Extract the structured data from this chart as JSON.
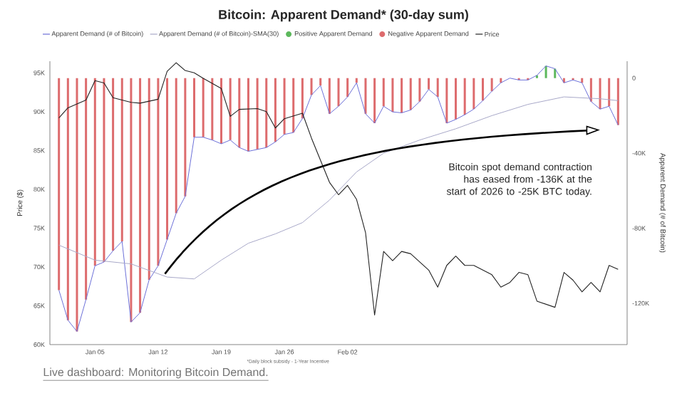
{
  "chart_data": {
    "type": "bar",
    "title": "Bitcoin: Apparent Demand* (30-day sum)",
    "ylabel": "Price ($)",
    "y2label": "Apparent Demand (# of Bitcoin)",
    "legend": "top",
    "x": [
      "2026-01-01",
      "2026-01-02",
      "2026-01-03",
      "2026-01-04",
      "2026-01-05",
      "2026-01-06",
      "2026-01-07",
      "2026-01-08",
      "2026-01-09",
      "2026-01-10",
      "2026-01-11",
      "2026-01-12",
      "2026-01-13",
      "2026-01-14",
      "2026-01-15",
      "2026-01-16",
      "2026-01-17",
      "2026-01-18",
      "2026-01-19",
      "2026-01-20",
      "2026-01-21",
      "2026-01-22",
      "2026-01-23",
      "2026-01-24",
      "2026-01-25",
      "2026-01-26",
      "2026-01-27",
      "2026-01-28",
      "2026-01-29",
      "2026-01-30",
      "2026-01-31",
      "2026-02-01",
      "2026-02-02",
      "2026-02-03",
      "2026-02-04",
      "2026-02-05",
      "2026-02-06",
      "2026-02-07",
      "2026-02-08",
      "2026-02-09",
      "2026-02-10",
      "2026-02-11",
      "2026-02-12",
      "2026-02-13",
      "2026-02-14",
      "2026-02-15",
      "2026-02-16",
      "2026-02-17",
      "2026-02-18",
      "2026-02-19",
      "2026-02-20",
      "2026-02-21",
      "2026-02-22",
      "2026-02-23",
      "2026-02-24",
      "2026-02-25",
      "2026-02-26",
      "2026-02-27",
      "2026-02-28",
      "2026-03-01",
      "2026-03-02",
      "2026-03-03",
      "2026-03-04"
    ],
    "xlim": [
      "2025-12-31",
      "2026-03-05"
    ],
    "xticks": [
      {
        "value": "2026-01-05",
        "label": "Jan 05"
      },
      {
        "value": "2026-01-12",
        "label": "Jan 12"
      },
      {
        "value": "2026-01-19",
        "label": "Jan 19"
      },
      {
        "value": "2026-01-26",
        "label": "Jan 26"
      },
      {
        "value": "2026-02-02",
        "label": "Feb 02"
      }
    ],
    "ylim": [
      60000,
      96500
    ],
    "yticks": [
      {
        "value": 60000,
        "label": "60K"
      },
      {
        "value": 65000,
        "label": "65K"
      },
      {
        "value": 70000,
        "label": "70K"
      },
      {
        "value": 75000,
        "label": "75K"
      },
      {
        "value": 80000,
        "label": "80K"
      },
      {
        "value": 85000,
        "label": "85K"
      },
      {
        "value": 90000,
        "label": "90K"
      },
      {
        "value": 95000,
        "label": "95K"
      }
    ],
    "y2lim": [
      -142000,
      9000
    ],
    "y2ticks": [
      {
        "value": -120000,
        "label": "-120K"
      },
      {
        "value": -80000,
        "label": "-80K"
      },
      {
        "value": -40000,
        "label": "-40K"
      },
      0
    ],
    "series": [
      {
        "name": "Apparent Demand (# of Bitcoin)",
        "type": "line",
        "axis": "y2",
        "color": "#6b6fd8",
        "values": [
          -113000,
          -129000,
          -135000,
          -118000,
          -100000,
          -98000,
          -92000,
          -87000,
          -130000,
          -125000,
          -107500,
          -100000,
          -86000,
          -72000,
          -63000,
          -31500,
          -31500,
          -33000,
          -35000,
          -33000,
          -37000,
          -39000,
          -38000,
          -37000,
          -34000,
          -30000,
          -29000,
          -21500,
          -9000,
          -4000,
          -19000,
          -15000,
          -10000,
          -2500,
          -19000,
          -24000,
          -15000,
          -18000,
          -18500,
          -17000,
          -12500,
          -6000,
          -10000,
          -24000,
          -22000,
          -19500,
          -16500,
          -12000,
          -7000,
          -2500,
          0,
          -1000,
          -1000,
          1500,
          6500,
          5000,
          -2500,
          -1000,
          -2500,
          -12500,
          -16500,
          -15000,
          -25000
        ]
      },
      {
        "name": "Apparent Demand (# of Bitcoin)-SMA(30)",
        "type": "line",
        "axis": "y2",
        "color": "#a8a8c8",
        "x": [
          "2026-01-01",
          "2026-01-05",
          "2026-01-09",
          "2026-01-13",
          "2026-01-16",
          "2026-01-19",
          "2026-01-22",
          "2026-01-25",
          "2026-01-28",
          "2026-01-31",
          "2026-02-03",
          "2026-02-06",
          "2026-02-10",
          "2026-02-14",
          "2026-02-18",
          "2026-02-22",
          "2026-02-26",
          "2026-03-02",
          "2026-03-04"
        ],
        "values": [
          -89000,
          -97000,
          -99000,
          -106000,
          -107000,
          -97000,
          -88000,
          -83000,
          -77000,
          -65000,
          -50000,
          -40000,
          -33000,
          -27000,
          -20000,
          -14000,
          -10000,
          -11000,
          -12000
        ]
      },
      {
        "name": "Positive Apparent Demand",
        "axis": "y2",
        "color": "#5cb85c",
        "values": [
          null,
          null,
          null,
          null,
          null,
          null,
          null,
          null,
          null,
          null,
          null,
          null,
          null,
          null,
          null,
          null,
          null,
          null,
          null,
          null,
          null,
          null,
          null,
          null,
          null,
          null,
          null,
          null,
          null,
          null,
          null,
          null,
          null,
          null,
          null,
          null,
          null,
          null,
          null,
          null,
          null,
          null,
          null,
          null,
          null,
          null,
          null,
          null,
          null,
          null,
          null,
          null,
          null,
          1500,
          6500,
          5000,
          null,
          null,
          null,
          null,
          null,
          null,
          null
        ]
      },
      {
        "name": "Negative Apparent Demand",
        "axis": "y2",
        "color": "#dd6b6d",
        "values": [
          -113000,
          -129000,
          -135000,
          -118000,
          -100000,
          -98000,
          -92000,
          -87000,
          -130000,
          -125000,
          -107500,
          -100000,
          -86000,
          -72000,
          -63000,
          -31500,
          -31500,
          -33000,
          -35000,
          -33000,
          -37000,
          -39000,
          -38000,
          -37000,
          -34000,
          -30000,
          -29000,
          -21500,
          -9000,
          -4000,
          -19000,
          -15000,
          -10000,
          -2500,
          -19000,
          -24000,
          -15000,
          -18000,
          -18500,
          -17000,
          -12500,
          -6000,
          -10000,
          -24000,
          -22000,
          -19500,
          -16500,
          -12000,
          -7000,
          -2500,
          null,
          -1000,
          -1000,
          null,
          null,
          null,
          -2500,
          -1000,
          -2500,
          -12500,
          -16500,
          -15000,
          -25000
        ]
      },
      {
        "name": "Price",
        "type": "line",
        "color": "#222222",
        "x": [
          "2026-01-01",
          "2026-01-02",
          "2026-01-04",
          "2026-01-05",
          "2026-01-06",
          "2026-01-07",
          "2026-01-09",
          "2026-01-10",
          "2026-01-12",
          "2026-01-13",
          "2026-01-14",
          "2026-01-15",
          "2026-01-16",
          "2026-01-17",
          "2026-01-19",
          "2026-01-20",
          "2026-01-21",
          "2026-01-23",
          "2026-01-24",
          "2026-01-25",
          "2026-01-26",
          "2026-01-28",
          "2026-01-29",
          "2026-01-31",
          "2026-02-01",
          "2026-02-02",
          "2026-02-03",
          "2026-02-04",
          "2026-02-05",
          "2026-02-06",
          "2026-02-07",
          "2026-02-08",
          "2026-02-09",
          "2026-02-11",
          "2026-02-12",
          "2026-02-13",
          "2026-02-14",
          "2026-02-15",
          "2026-02-16",
          "2026-02-18",
          "2026-02-19",
          "2026-02-20",
          "2026-02-21",
          "2026-02-22",
          "2026-02-23",
          "2026-02-25",
          "2026-02-26",
          "2026-02-27",
          "2026-02-28",
          "2026-03-01",
          "2026-03-02",
          "2026-03-03",
          "2026-03-04"
        ],
        "values": [
          89200,
          90500,
          91500,
          94000,
          93700,
          91800,
          91200,
          91100,
          91600,
          95200,
          96300,
          95300,
          95000,
          94300,
          93000,
          89400,
          90300,
          90400,
          90000,
          87900,
          89100,
          89800,
          86600,
          80900,
          79300,
          80500,
          78700,
          74400,
          63800,
          72000,
          70800,
          72000,
          71700,
          69600,
          67400,
          70200,
          71400,
          70200,
          70200,
          69000,
          67400,
          68000,
          69300,
          69000,
          65600,
          64800,
          69300,
          68300,
          66800,
          68000,
          66800,
          70200,
          69700
        ]
      }
    ],
    "annotations": [
      "Bitcoin spot demand contraction has eased from -136K at the start of 2026 to -25K BTC today.",
      "*Daily block subsidy - 1-Year Incentive",
      "Live dashboard: Monitoring Bitcoin Demand."
    ]
  }
}
